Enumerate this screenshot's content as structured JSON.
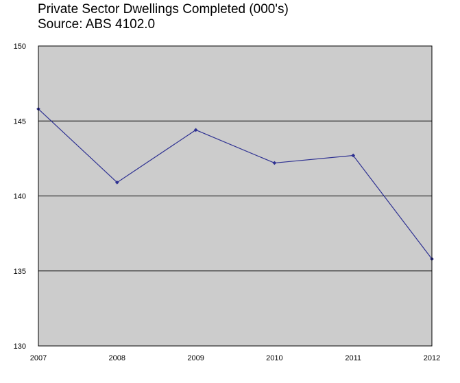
{
  "chart_data": {
    "type": "line",
    "title": "Private Sector Dwellings Completed (000's)",
    "subtitle": "Source: ABS 4102.0",
    "xlabel": "",
    "ylabel": "",
    "categories": [
      "2007",
      "2008",
      "2009",
      "2010",
      "2011",
      "2012"
    ],
    "series": [
      {
        "values": [
          145.8,
          140.9,
          144.4,
          142.2,
          142.7,
          135.8
        ]
      }
    ],
    "ylim": [
      130,
      150
    ],
    "yticks": [
      130,
      135,
      140,
      145,
      150
    ],
    "grid": true,
    "legend": "none",
    "colors": {
      "plot_background": "#cccccc",
      "line": "#2e3192",
      "grid": "#000000"
    }
  }
}
